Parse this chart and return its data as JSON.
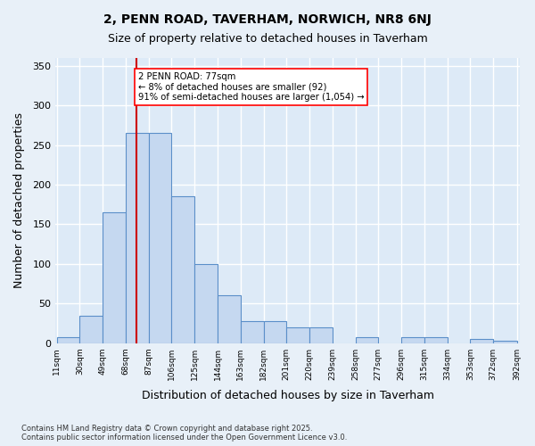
{
  "title_line1": "2, PENN ROAD, TAVERHAM, NORWICH, NR8 6NJ",
  "title_line2": "Size of property relative to detached houses in Taverham",
  "xlabel": "Distribution of detached houses by size in Taverham",
  "ylabel": "Number of detached properties",
  "bar_color": "#c5d8f0",
  "bar_edge_color": "#5b8fc9",
  "background_color": "#ddeaf7",
  "grid_color": "#ffffff",
  "annotation_text": "2 PENN ROAD: 77sqm\n← 8% of detached houses are smaller (92)\n91% of semi-detached houses are larger (1,054) →",
  "vline_x": 77,
  "vline_color": "#cc0000",
  "bin_edges": [
    11,
    30,
    49,
    68,
    87,
    106,
    125,
    144,
    163,
    182,
    201,
    220,
    239,
    258,
    277,
    296,
    315,
    334,
    353,
    372,
    392
  ],
  "bar_heights": [
    8,
    35,
    165,
    265,
    265,
    185,
    100,
    60,
    28,
    28,
    20,
    20,
    0,
    8,
    0,
    8,
    8,
    0,
    5,
    3
  ],
  "ylim": [
    0,
    360
  ],
  "yticks": [
    0,
    50,
    100,
    150,
    200,
    250,
    300,
    350
  ],
  "footnote_line1": "Contains HM Land Registry data © Crown copyright and database right 2025.",
  "footnote_line2": "Contains public sector information licensed under the Open Government Licence v3.0."
}
